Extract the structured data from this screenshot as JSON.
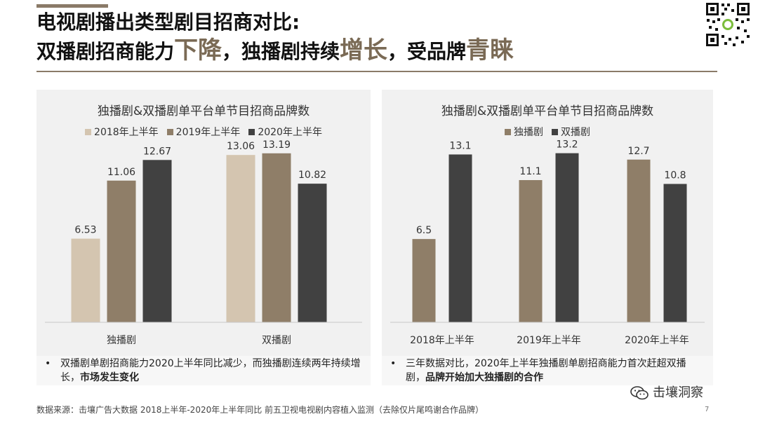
{
  "title": {
    "line1": "电视剧播出类型剧目招商对比:",
    "line2_part1": "双播剧招商能力",
    "line2_hl1": "下降",
    "line2_part2": "，独播剧持续",
    "line2_hl2": "增长",
    "line2_part3": "，受品牌",
    "line2_hl3": "青睐"
  },
  "accent_color": "#8a7a68",
  "qr_icon": "qr-code-icon",
  "left_panel": {
    "note_bullet": "•",
    "note_text": "双播剧单剧招商能力2020上半年同比减少，而独播剧连续两年持续增长，",
    "note_bold": "市场发生变化"
  },
  "right_panel": {
    "note_bullet": "•",
    "note_text": "三年数据对比，2020年上半年独播剧单剧招商能力首次赶超双播剧，",
    "note_bold": "品牌开始加大独播剧的合作"
  },
  "footer": {
    "source": "数据来源：击壤广告大数据  2018上半年-2020年上半年同比 前五卫视电视剧内容植入监测（去除仅片尾鸣谢合作品牌）",
    "page": "7",
    "wechat_label": "击壤洞察",
    "wechat_icon": "wechat-icon"
  },
  "chart_data": [
    {
      "type": "bar",
      "title": "独播剧&双播剧单平台单节目招商品牌数",
      "legend_position": "top",
      "grid": false,
      "categories": [
        "独播剧",
        "双播剧"
      ],
      "series": [
        {
          "name": "2018年上半年",
          "color": "#d4c5b0",
          "values": [
            6.53,
            13.06
          ],
          "labels": [
            "6.53",
            "13.06"
          ]
        },
        {
          "name": "2019年上半年",
          "color": "#8f7e68",
          "values": [
            11.06,
            13.19
          ],
          "labels": [
            "11.06",
            "13.19"
          ]
        },
        {
          "name": "2020年上半年",
          "color": "#414141",
          "values": [
            12.67,
            10.82
          ],
          "labels": [
            "12.67",
            "10.82"
          ]
        }
      ],
      "ylim": [
        0,
        14
      ]
    },
    {
      "type": "bar",
      "title": "独播剧&双播剧单平台单节目招商品牌数",
      "legend_position": "top",
      "grid": false,
      "categories": [
        "2018年上半年",
        "2019年上半年",
        "2020年上半年"
      ],
      "series": [
        {
          "name": "独播剧",
          "color": "#8f7e68",
          "values": [
            6.5,
            11.1,
            12.7
          ],
          "labels": [
            "6.5",
            "11.1",
            "12.7"
          ]
        },
        {
          "name": "双播剧",
          "color": "#414141",
          "values": [
            13.1,
            13.2,
            10.8
          ],
          "labels": [
            "13.1",
            "13.2",
            "10.8"
          ]
        }
      ],
      "ylim": [
        0,
        14
      ]
    }
  ]
}
